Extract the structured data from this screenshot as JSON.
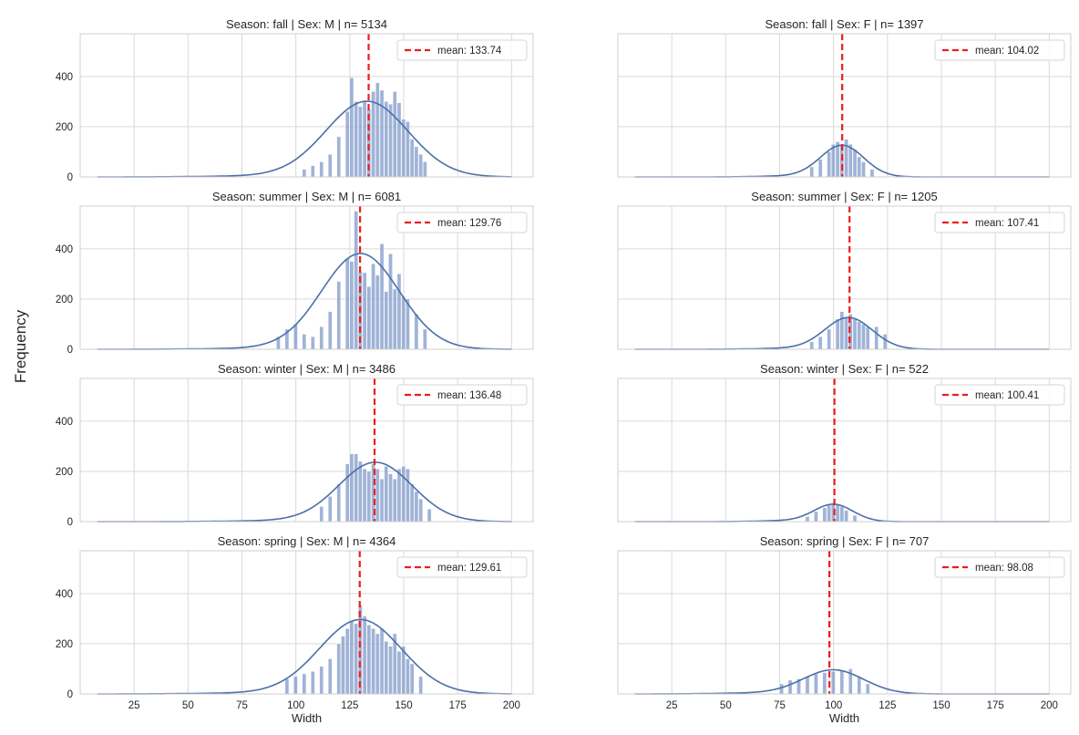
{
  "figure": {
    "ylabel": "Frequency",
    "xlabel": "Width",
    "xlim": [
      0,
      210
    ],
    "ylim": [
      0,
      570
    ],
    "xticks": [
      25,
      50,
      75,
      100,
      125,
      150,
      175,
      200
    ],
    "yticks": [
      0,
      200,
      400
    ],
    "colors": {
      "bar": "#7b96c8",
      "kde": "#4c6fa8",
      "mean_line": "#ee1c1c",
      "grid": "#d9d9d9",
      "axes_edge": "#cfcfcf"
    },
    "grid": true,
    "legend_position": "top-right"
  },
  "chart_data": [
    {
      "type": "bar",
      "title": "Season: fall | Sex: M | n= 5134",
      "legend": "mean: 133.74",
      "mean": 133.74,
      "n": 5134,
      "mu": 133,
      "sd": 19,
      "peak": 300,
      "bins_x": [
        104,
        108,
        112,
        116,
        120,
        124,
        126,
        128,
        130,
        132,
        134,
        136,
        138,
        140,
        142,
        144,
        146,
        148,
        150,
        152,
        154,
        156,
        158,
        160
      ],
      "bins_y": [
        30,
        45,
        60,
        90,
        160,
        260,
        395,
        300,
        280,
        300,
        270,
        340,
        375,
        345,
        300,
        290,
        340,
        295,
        230,
        220,
        150,
        120,
        90,
        60
      ]
    },
    {
      "type": "bar",
      "title": "Season: fall | Sex: F | n= 1397",
      "legend": "mean: 104.02",
      "mean": 104.02,
      "n": 1397,
      "mu": 104,
      "sd": 10,
      "peak": 125,
      "bins_x": [
        90,
        94,
        98,
        100,
        102,
        104,
        106,
        108,
        110,
        112,
        114,
        118
      ],
      "bins_y": [
        40,
        70,
        100,
        130,
        140,
        125,
        150,
        130,
        110,
        80,
        60,
        30
      ]
    },
    {
      "type": "bar",
      "title": "Season: summer | Sex: M | n= 6081",
      "legend": "mean: 129.76",
      "mean": 129.76,
      "n": 6081,
      "mu": 130,
      "sd": 18,
      "peak": 380,
      "bins_x": [
        92,
        96,
        100,
        104,
        108,
        112,
        116,
        120,
        124,
        126,
        128,
        130,
        132,
        134,
        136,
        138,
        140,
        142,
        144,
        146,
        148,
        150,
        152,
        156,
        160
      ],
      "bins_y": [
        50,
        80,
        100,
        60,
        50,
        90,
        150,
        270,
        360,
        350,
        550,
        310,
        305,
        250,
        340,
        295,
        420,
        230,
        380,
        240,
        300,
        210,
        200,
        140,
        80
      ]
    },
    {
      "type": "bar",
      "title": "Season: summer | Sex: F | n= 1205",
      "legend": "mean: 107.41",
      "mean": 107.41,
      "n": 1205,
      "mu": 107,
      "sd": 11,
      "peak": 125,
      "bins_x": [
        90,
        94,
        98,
        102,
        104,
        106,
        108,
        110,
        112,
        114,
        116,
        120,
        124
      ],
      "bins_y": [
        30,
        50,
        80,
        120,
        150,
        125,
        140,
        120,
        110,
        100,
        90,
        90,
        60
      ]
    },
    {
      "type": "bar",
      "title": "Season: winter | Sex: M | n= 3486",
      "legend": "mean: 136.48",
      "mean": 136.48,
      "n": 3486,
      "mu": 137,
      "sd": 17,
      "peak": 235,
      "bins_x": [
        112,
        116,
        120,
        124,
        126,
        128,
        130,
        132,
        134,
        136,
        138,
        140,
        142,
        144,
        146,
        148,
        150,
        152,
        154,
        156,
        158,
        162
      ],
      "bins_y": [
        60,
        100,
        150,
        230,
        270,
        270,
        240,
        210,
        200,
        230,
        210,
        170,
        220,
        190,
        170,
        210,
        220,
        210,
        150,
        120,
        90,
        50
      ]
    },
    {
      "type": "bar",
      "title": "Season: winter | Sex: F | n= 522",
      "legend": "mean: 100.41",
      "mean": 100.41,
      "n": 522,
      "mu": 100,
      "sd": 9,
      "peak": 68,
      "bins_x": [
        88,
        92,
        96,
        98,
        100,
        102,
        104,
        106,
        110
      ],
      "bins_y": [
        20,
        40,
        55,
        65,
        75,
        70,
        60,
        45,
        25
      ]
    },
    {
      "type": "bar",
      "title": "Season: spring | Sex: M | n= 4364",
      "legend": "mean: 129.61",
      "mean": 129.61,
      "n": 4364,
      "mu": 130,
      "sd": 19,
      "peak": 295,
      "bins_x": [
        96,
        100,
        104,
        108,
        112,
        116,
        120,
        122,
        124,
        126,
        128,
        130,
        132,
        134,
        136,
        138,
        140,
        142,
        144,
        146,
        148,
        150,
        152,
        154,
        158
      ],
      "bins_y": [
        60,
        70,
        80,
        90,
        110,
        140,
        200,
        230,
        260,
        290,
        280,
        355,
        310,
        275,
        260,
        240,
        260,
        210,
        190,
        240,
        170,
        190,
        140,
        120,
        70
      ]
    },
    {
      "type": "bar",
      "title": "Season: spring | Sex: F | n= 707",
      "legend": "mean: 98.08",
      "mean": 98.08,
      "n": 707,
      "mu": 100,
      "sd": 14,
      "peak": 95,
      "bins_x": [
        76,
        80,
        84,
        88,
        92,
        96,
        100,
        104,
        108,
        112,
        116
      ],
      "bins_y": [
        40,
        55,
        60,
        70,
        80,
        85,
        90,
        95,
        100,
        70,
        40
      ]
    }
  ]
}
